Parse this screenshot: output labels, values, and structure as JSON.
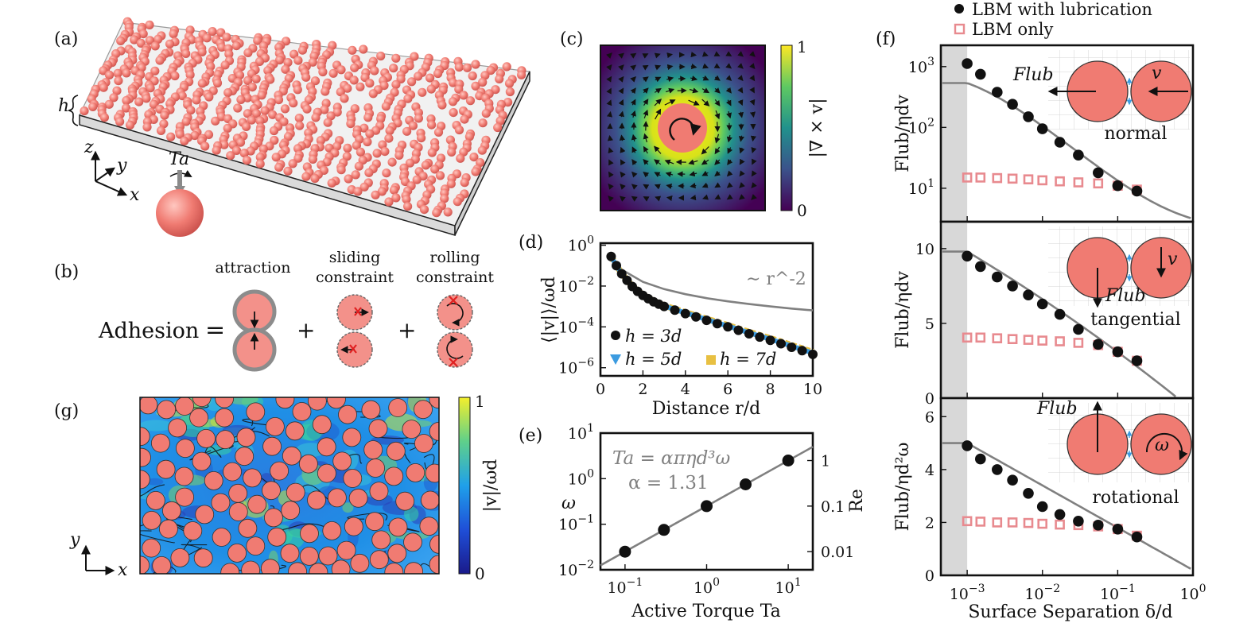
{
  "figure": {
    "panel_labels": {
      "a": "(a)",
      "b": "(b)",
      "c": "(c)",
      "d": "(d)",
      "e": "(e)",
      "f": "(f)",
      "g": "(g)"
    },
    "panel_a": {
      "h": "h",
      "x": "x",
      "y": "y",
      "z": "z",
      "torque": "Ta"
    },
    "panel_b": {
      "equation_lhs": "Adhesion",
      "equals": "=",
      "plus": "+",
      "terms": [
        {
          "label1": "attraction",
          "label2": ""
        },
        {
          "label1": "sliding",
          "label2": "constraint"
        },
        {
          "label1": "rolling",
          "label2": "constraint"
        }
      ]
    },
    "panel_c": {
      "colorbar_label": "|∇ × v|",
      "cb_max": "1",
      "cb_min": "0"
    },
    "panel_g": {
      "colorbar_label": "|v|/ωd",
      "cb_max": "1",
      "cb_min": "0",
      "x": "x",
      "y": "y"
    },
    "colors": {
      "particle": "#f07b72",
      "black": "#111111",
      "gray": "#808080",
      "blue": "#3c9be0",
      "gold": "#e8c042",
      "pink": "#e88a8f",
      "shade": "#d8d8d8"
    }
  },
  "chart_data": [
    {
      "id": "d",
      "type": "scatter",
      "xlabel": "Distance r/d",
      "ylabel": "⟨|v|⟩/ωd",
      "xlim": [
        0,
        10
      ],
      "ylim_log10": [
        -6.4,
        0.1
      ],
      "x_ticks": [
        "0",
        "2",
        "4",
        "6",
        "8",
        "10"
      ],
      "y_ticks": [
        "10^0",
        "10^-2",
        "10^-4",
        "10^-6"
      ],
      "reference_label": "∼ r^-2",
      "reference_line": {
        "x": [
          0.5,
          1,
          2,
          3,
          4,
          5,
          6,
          7,
          8,
          9,
          10
        ],
        "y": [
          0.28,
          0.064,
          0.016,
          0.0071,
          0.004,
          0.00256,
          0.00178,
          0.00131,
          0.001,
          0.00079,
          0.00064
        ]
      },
      "series": [
        {
          "name": "h = 3d",
          "marker": "circle",
          "x": [
            0.5,
            0.75,
            1.0,
            1.25,
            1.5,
            1.75,
            2.0,
            2.25,
            2.5,
            2.75,
            3.0,
            3.5,
            4.0,
            4.5,
            5.0,
            5.5,
            6.0,
            6.5,
            7.0,
            7.5,
            8.0,
            8.5,
            9.0,
            9.5,
            10.0
          ],
          "y": [
            0.28,
            0.1,
            0.04,
            0.019,
            0.0095,
            0.0055,
            0.0035,
            0.0024,
            0.0017,
            0.0013,
            0.001,
            0.00066,
            0.00045,
            0.00031,
            0.00021,
            0.000145,
            0.0001,
            6.8e-05,
            4.6e-05,
            3.2e-05,
            2.2e-05,
            1.5e-05,
            1e-05,
            6.8e-06,
            4.5e-06
          ]
        },
        {
          "name": "h = 5d",
          "marker": "triangle",
          "x": [
            0.5,
            10.0
          ],
          "y": [
            0.29,
            5.2e-06
          ]
        },
        {
          "name": "h = 7d",
          "marker": "square",
          "x": [
            0.5,
            10.0
          ],
          "y": [
            0.3,
            5.8e-06
          ]
        }
      ]
    },
    {
      "id": "e",
      "type": "scatter",
      "xlabel": "Active Torque Ta",
      "ylabel": "ω",
      "ylabel_right": "Re",
      "x_ticks": [
        "10^-1",
        "10^0",
        "10^1"
      ],
      "y_ticks": [
        "10^-2",
        "10^-1",
        "10^0",
        "10^1"
      ],
      "y_ticks_right": [
        "0.01",
        "0.1",
        "1"
      ],
      "annotation_1": "Ta = απηd³ω",
      "annotation_2": "α = 1.31",
      "x": [
        0.1,
        0.3,
        1,
        3,
        10
      ],
      "y": [
        0.025,
        0.075,
        0.25,
        0.75,
        2.5
      ],
      "fit": {
        "x": [
          0.05,
          20
        ],
        "y": [
          0.0125,
          5.0
        ]
      }
    },
    {
      "id": "f",
      "type": "scatter",
      "xlabel": "Surface Separation δ/d",
      "x_ticks": [
        "10^-3",
        "10^-2",
        "10^-1",
        "10^0"
      ],
      "legend": [
        {
          "name": "LBM with lubrication",
          "marker": "filled-circle"
        },
        {
          "name": "LBM only",
          "marker": "open-square"
        }
      ],
      "panels": [
        {
          "mode": "normal",
          "ylabel": "Flub/ηdv",
          "scale": "log",
          "y_ticks": [
            "10^1",
            "10^2",
            "10^3"
          ],
          "force_label": "Flub",
          "velocity_label": "v",
          "x": [
            0.001,
            0.0015,
            0.0025,
            0.004,
            0.0065,
            0.01,
            0.017,
            0.03,
            0.055,
            0.1,
            0.18
          ],
          "lbm_lub": [
            1120,
            750,
            380,
            240,
            150,
            95,
            57,
            35,
            18,
            11,
            9
          ],
          "lbm_only": [
            15,
            15,
            14.7,
            14.4,
            14,
            13.5,
            13,
            12.5,
            12,
            11,
            9.5
          ]
        },
        {
          "mode": "tangential",
          "ylabel": "Flub/ηdv",
          "scale": "linear",
          "y_ticks": [
            "0",
            "5",
            "10"
          ],
          "force_label": "Flub",
          "velocity_label": "v",
          "x": [
            0.001,
            0.0015,
            0.0025,
            0.004,
            0.0065,
            0.01,
            0.017,
            0.03,
            0.055,
            0.1,
            0.18
          ],
          "lbm_lub": [
            9.5,
            8.8,
            8.1,
            7.5,
            6.9,
            6.3,
            5.6,
            4.6,
            3.6,
            3.1,
            2.5
          ],
          "lbm_only": [
            4.05,
            4.05,
            4.0,
            3.95,
            3.9,
            3.85,
            3.8,
            3.7,
            3.55,
            3.1,
            2.5
          ]
        },
        {
          "mode": "rotational",
          "ylabel": "Flub/ηd²ω",
          "scale": "linear",
          "y_ticks": [
            "0",
            "2",
            "4",
            "6"
          ],
          "force_label": "Flub",
          "velocity_label": "ω",
          "x": [
            0.001,
            0.0015,
            0.0025,
            0.004,
            0.0065,
            0.01,
            0.017,
            0.03,
            0.055,
            0.1,
            0.18
          ],
          "lbm_lub": [
            4.9,
            4.4,
            4.0,
            3.6,
            3.1,
            2.6,
            2.3,
            2.05,
            1.9,
            1.75,
            1.45
          ],
          "lbm_only": [
            2.05,
            2.03,
            2.0,
            2.0,
            1.98,
            1.95,
            1.92,
            1.9,
            1.85,
            1.75,
            1.5
          ]
        }
      ]
    }
  ]
}
